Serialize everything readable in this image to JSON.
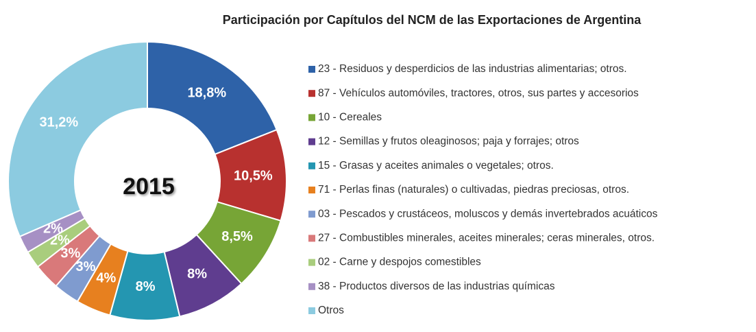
{
  "chart_data": {
    "type": "donut",
    "title": "Participación por Capítulos del NCM de las Exportaciones de Argentina",
    "center_label": "2015",
    "categories": [
      "23 - Residuos y desperdicios de las industrias alimentarias; otros.",
      "87 - Vehículos automóviles, tractores, otros, sus partes y accesorios",
      "10 - Cereales",
      "12 - Semillas y frutos oleaginosos;  paja y forrajes; otros",
      "15 - Grasas y aceites animales o vegetales; otros.",
      "71 - Perlas finas (naturales) o cultivadas, piedras preciosas, otros.",
      "03 - Pescados y crustáceos, moluscos y demás invertebrados acuáticos",
      "27 - Combustibles minerales, aceites minerales; ceras minerales, otros.",
      "02 - Carne y despojos comestibles",
      "38 - Productos diversos de las industrias químicas",
      "Otros"
    ],
    "values": [
      18.8,
      10.5,
      8.5,
      8,
      8,
      4,
      3,
      3,
      2,
      2,
      31.2
    ],
    "value_labels": [
      "18,8%",
      "10,5%",
      "8,5%",
      "8%",
      "8%",
      "4%",
      "3%",
      "3%",
      "2%",
      "2%",
      "31,2%"
    ],
    "colors": [
      "#2e62a8",
      "#b8312f",
      "#77a536",
      "#5f3d8f",
      "#2496b1",
      "#e7801f",
      "#7f9bcf",
      "#d9797a",
      "#a9cd7d",
      "#a690c4",
      "#8ccbe0"
    ],
    "legend": "right"
  }
}
